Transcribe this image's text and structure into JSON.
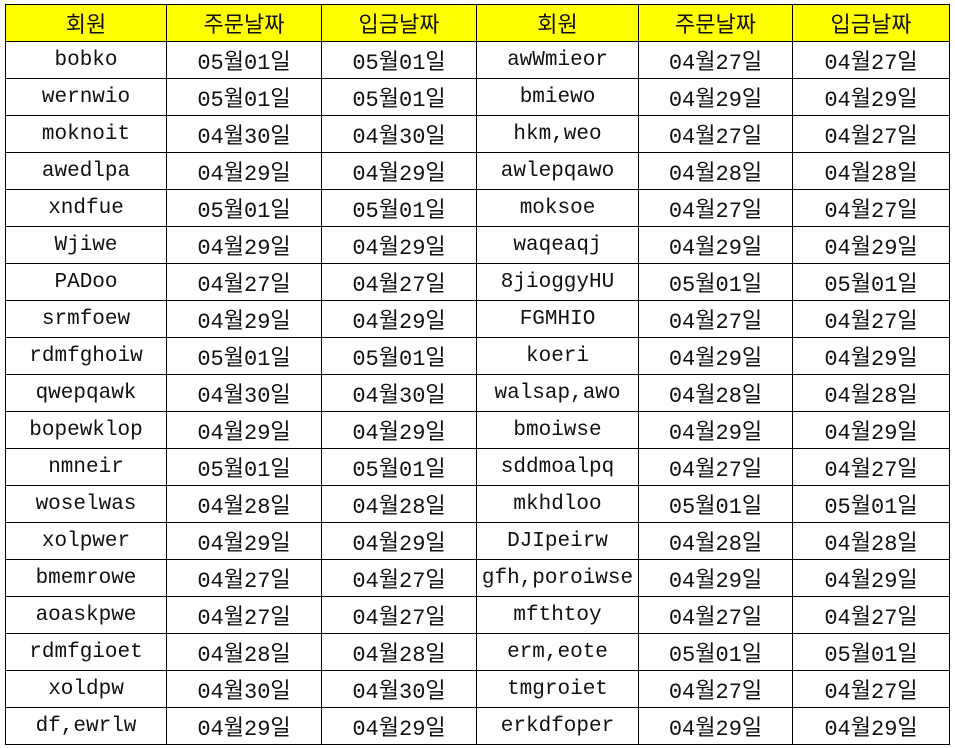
{
  "header": {
    "color": "#ffff00",
    "columns": [
      "회원",
      "주문날짜",
      "입금날짜",
      "회원",
      "주문날짜",
      "입금날짜"
    ]
  },
  "rows": [
    [
      "bobko",
      "05월01일",
      "05월01일",
      "awWmieor",
      "04월27일",
      "04월27일"
    ],
    [
      "wernwio",
      "05월01일",
      "05월01일",
      "bmiewo",
      "04월29일",
      "04월29일"
    ],
    [
      "moknoit",
      "04월30일",
      "04월30일",
      "hkm,weo",
      "04월27일",
      "04월27일"
    ],
    [
      "awedlpa",
      "04월29일",
      "04월29일",
      "awlepqawo",
      "04월28일",
      "04월28일"
    ],
    [
      "xndfue",
      "05월01일",
      "05월01일",
      "moksoe",
      "04월27일",
      "04월27일"
    ],
    [
      "Wjiwe",
      "04월29일",
      "04월29일",
      "waqeaqj",
      "04월29일",
      "04월29일"
    ],
    [
      "PADoo",
      "04월27일",
      "04월27일",
      "8jioggyHU",
      "05월01일",
      "05월01일"
    ],
    [
      "srmfoew",
      "04월29일",
      "04월29일",
      "FGMHIO",
      "04월27일",
      "04월27일"
    ],
    [
      "rdmfghoiw",
      "05월01일",
      "05월01일",
      "koeri",
      "04월29일",
      "04월29일"
    ],
    [
      "qwepqawk",
      "04월30일",
      "04월30일",
      "walsap,awo",
      "04월28일",
      "04월28일"
    ],
    [
      "bopewklop",
      "04월29일",
      "04월29일",
      "bmoiwse",
      "04월29일",
      "04월29일"
    ],
    [
      "nmneir",
      "05월01일",
      "05월01일",
      "sddmoalpq",
      "04월27일",
      "04월27일"
    ],
    [
      "woselwas",
      "04월28일",
      "04월28일",
      "mkhdloo",
      "05월01일",
      "05월01일"
    ],
    [
      "xolpwer",
      "04월29일",
      "04월29일",
      "DJIpeirw",
      "04월28일",
      "04월28일"
    ],
    [
      "bmemrowe",
      "04월27일",
      "04월27일",
      "gfh,poroiwse",
      "04월29일",
      "04월29일"
    ],
    [
      "aoaskpwe",
      "04월27일",
      "04월27일",
      "mfthtoy",
      "04월27일",
      "04월27일"
    ],
    [
      "rdmfgioet",
      "04월28일",
      "04월28일",
      "erm,eote",
      "05월01일",
      "05월01일"
    ],
    [
      "xoldpw",
      "04월30일",
      "04월30일",
      "tmgroiet",
      "04월27일",
      "04월27일"
    ],
    [
      "df,ewrlw",
      "04월29일",
      "04월29일",
      "erkdfoper",
      "04월29일",
      "04월29일"
    ]
  ]
}
